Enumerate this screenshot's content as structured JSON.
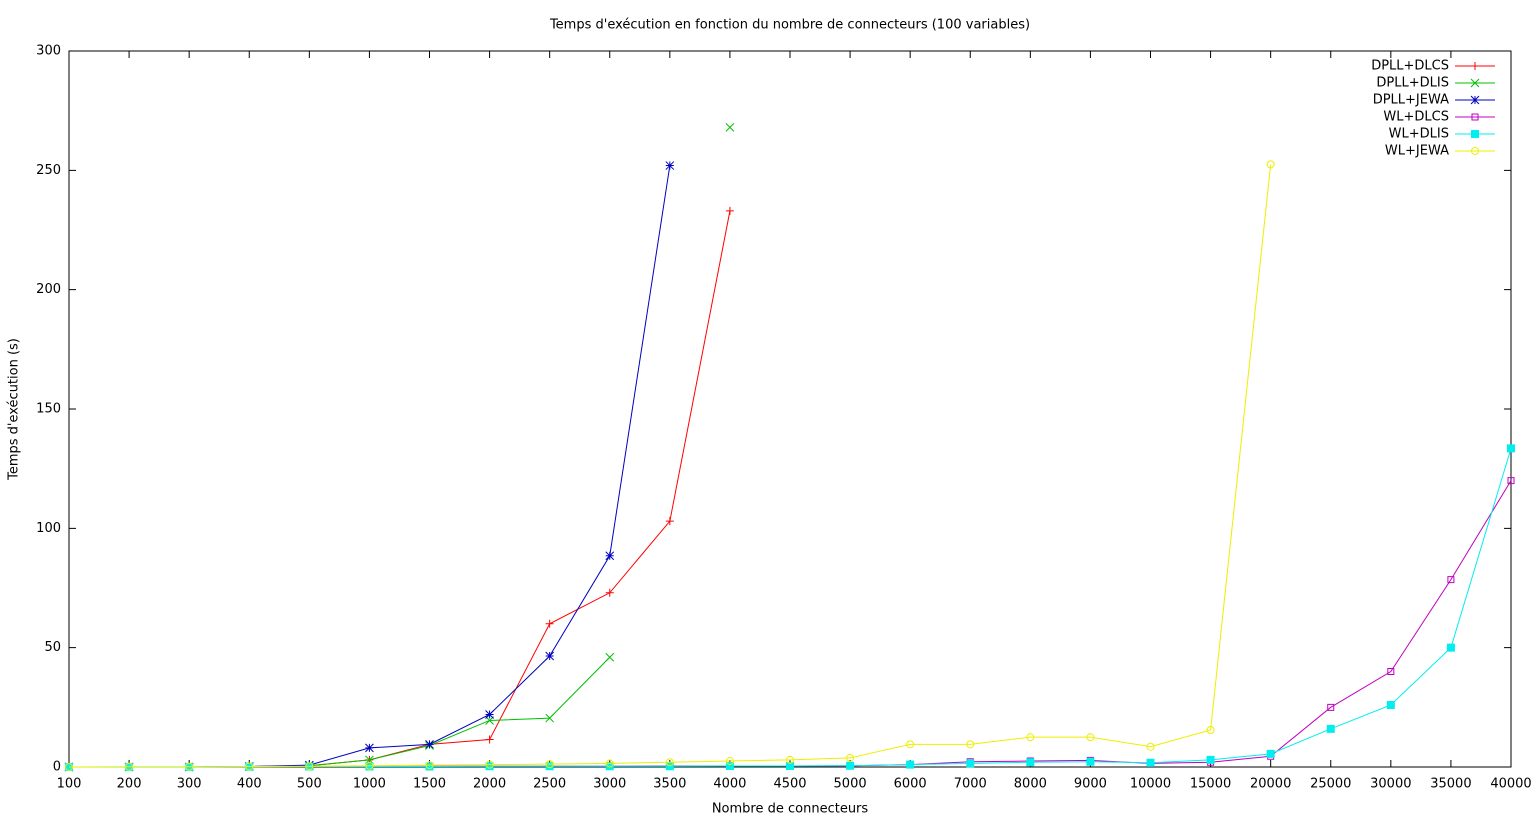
{
  "chart_data": {
    "type": "line",
    "title": "Temps d'exécution en fonction du nombre de connecteurs (100 variables)",
    "xlabel": "Nombre de connecteurs",
    "ylabel": "Temps d'exécution (s)",
    "categories": [
      "100",
      "200",
      "300",
      "400",
      "500",
      "1000",
      "1500",
      "2000",
      "2500",
      "3000",
      "3500",
      "4000",
      "4500",
      "5000",
      "6000",
      "7000",
      "8000",
      "9000",
      "10000",
      "15000",
      "20000",
      "25000",
      "30000",
      "35000",
      "40000"
    ],
    "ylim": [
      0,
      300
    ],
    "yticks": [
      0,
      50,
      100,
      150,
      200,
      250,
      300
    ],
    "grid": false,
    "legend": "top-right",
    "series": [
      {
        "name": "DPLL+DLCS",
        "color": "#ff0000",
        "marker": "plus",
        "values": [
          0,
          0,
          0,
          0.2,
          0.5,
          3,
          9.5,
          11.5,
          60,
          73,
          103,
          233,
          null,
          null,
          null,
          null,
          null,
          null,
          null,
          null,
          null,
          null,
          null,
          null,
          null
        ]
      },
      {
        "name": "DPLL+DLIS",
        "color": "#00c000",
        "marker": "cross",
        "values": [
          0,
          0,
          0,
          0.2,
          0.5,
          3,
          9,
          19.5,
          20.5,
          46,
          null,
          268,
          null,
          null,
          null,
          null,
          null,
          null,
          null,
          null,
          null,
          null,
          null,
          null,
          null
        ]
      },
      {
        "name": "DPLL+JEWA",
        "color": "#0000c0",
        "marker": "star",
        "values": [
          0,
          0,
          0,
          0.2,
          0.8,
          8,
          9.5,
          22,
          46.5,
          88.5,
          252,
          null,
          null,
          null,
          null,
          null,
          null,
          null,
          null,
          null,
          null,
          null,
          null,
          null,
          null
        ]
      },
      {
        "name": "WL+DLCS",
        "color": "#c000c0",
        "marker": "square",
        "values": [
          0,
          0,
          0,
          0.1,
          0.2,
          0.2,
          0.3,
          0.3,
          0.3,
          0.3,
          0.4,
          0.4,
          0.4,
          0.5,
          1,
          2.2,
          2.5,
          2.8,
          1.5,
          2,
          4.5,
          25,
          40,
          78.5,
          120
        ]
      },
      {
        "name": "WL+DLIS",
        "color": "#00eeee",
        "marker": "filled-square",
        "values": [
          0,
          0,
          0,
          0.1,
          0.2,
          0.2,
          0.2,
          0.3,
          0.3,
          0.3,
          0.3,
          0.4,
          0.4,
          0.5,
          1,
          1.5,
          2,
          2.2,
          1.8,
          3,
          5.5,
          16,
          26,
          50,
          133.5
        ]
      },
      {
        "name": "WL+JEWA",
        "color": "#eeee00",
        "marker": "circle",
        "values": [
          0,
          0.1,
          0.1,
          0.2,
          0.3,
          0.5,
          0.8,
          1,
          1.2,
          1.5,
          2,
          2.5,
          3,
          3.8,
          9.5,
          9.5,
          12.5,
          12.5,
          8.5,
          15.5,
          252.5,
          null,
          null,
          null,
          null
        ]
      }
    ]
  }
}
